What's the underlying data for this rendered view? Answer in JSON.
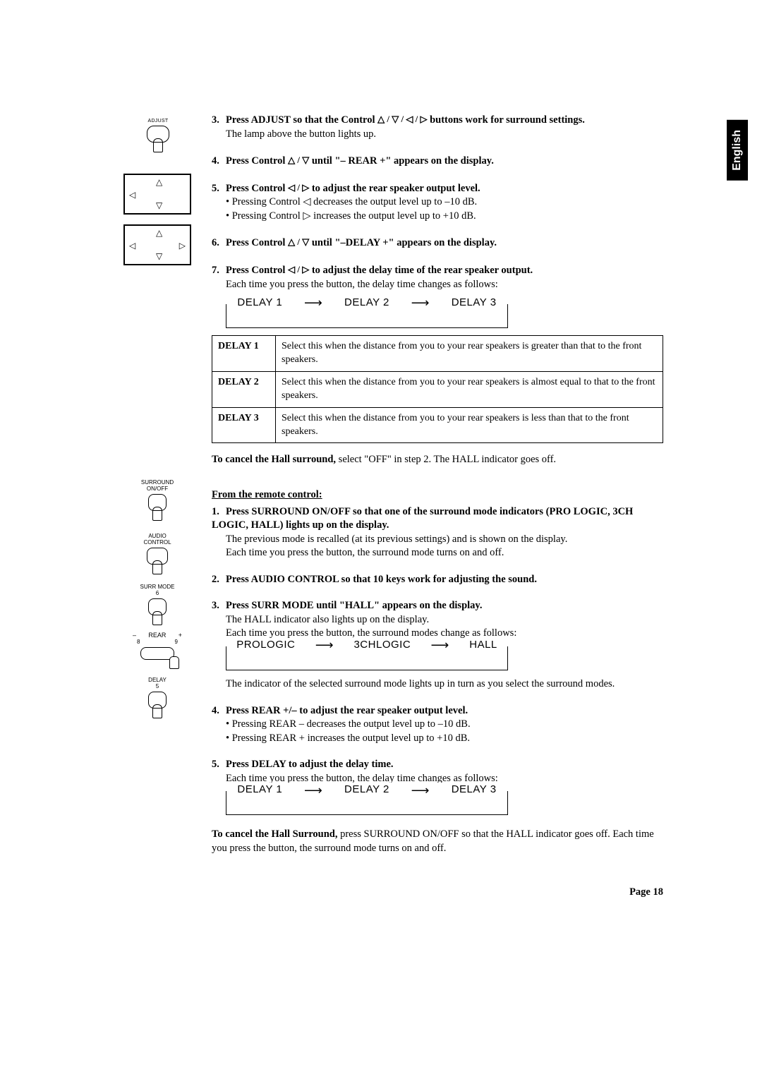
{
  "language_tab": "English",
  "page_label": "Page 18",
  "symbols": {
    "up": "△",
    "down": "▽",
    "left": "◁",
    "right": "▷",
    "arrow": "⟶"
  },
  "steps_a": [
    {
      "n": "3.",
      "bold_pre": "Press ADJUST so that the Control ",
      "bold_sym": "△ / ▽ / ◁ / ▷",
      "bold_post": " buttons work for surround settings.",
      "lines": [
        "The lamp above the button lights up."
      ]
    },
    {
      "n": "4.",
      "bold_pre": "Press Control ",
      "bold_sym": "△ / ▽",
      "bold_post": " until \"– REAR +\" appears on the display.",
      "lines": []
    },
    {
      "n": "5.",
      "bold_pre": "Press Control ",
      "bold_sym": "◁ / ▷",
      "bold_post": " to adjust the rear speaker output level.",
      "lines": [
        "• Pressing Control ◁ decreases the output level up to –10 dB.",
        "• Pressing Control ▷ increases the output level up to +10 dB."
      ]
    },
    {
      "n": "6.",
      "bold_pre": "Press Control ",
      "bold_sym": "△ / ▽",
      "bold_post": " until \"–DELAY +\" appears on the display.",
      "lines": []
    },
    {
      "n": "7.",
      "bold_pre": "Press Control ",
      "bold_sym": "◁ / ▷",
      "bold_post": " to adjust the delay time of the rear speaker output.",
      "lines": [
        "Each time you press the button, the delay time changes as follows:"
      ]
    }
  ],
  "delay_sequence": [
    "DELAY 1",
    "DELAY 2",
    "DELAY 3"
  ],
  "delay_table": [
    {
      "label": "DELAY 1",
      "desc": "Select this when the distance from you to your rear speakers is greater than that to the front speakers."
    },
    {
      "label": "DELAY 2",
      "desc": "Select this when the distance from you to your rear speakers is almost equal to that to the front speakers."
    },
    {
      "label": "DELAY 3",
      "desc": "Select this when the distance from you to your rear speakers is less than that to the front speakers."
    }
  ],
  "cancel_a": {
    "bold": "To cancel the Hall surround,",
    "rest": " select \"OFF\" in step 2. The HALL indicator goes off."
  },
  "remote_heading": "From the remote control:",
  "steps_b": [
    {
      "n": "1.",
      "bold": "Press SURROUND ON/OFF so that one of the surround mode indicators (PRO LOGIC, 3CH LOGIC, HALL) lights up on the display.",
      "lines": [
        "The previous mode is recalled (at its previous settings) and is shown on the display.",
        "Each time you press the button, the surround mode turns on and off."
      ]
    },
    {
      "n": "2.",
      "bold": "Press AUDIO CONTROL so that 10 keys work for adjusting the sound.",
      "lines": []
    },
    {
      "n": "3.",
      "bold": "Press SURR MODE until \"HALL\" appears on the display.",
      "lines": [
        "The HALL indicator also lights up on the display.",
        "Each time you press the button, the surround modes change as follows:"
      ],
      "sequence": [
        "PROLOGIC",
        "3CHLOGIC",
        "HALL"
      ],
      "tail": "The indicator of the selected surround mode lights up in turn as you select the surround modes."
    },
    {
      "n": "4.",
      "bold": "Press REAR +/– to adjust the rear speaker output level.",
      "lines": [
        "• Pressing REAR – decreases the output level up to –10 dB.",
        "• Pressing REAR + increases the output level up to +10 dB."
      ]
    },
    {
      "n": "5.",
      "bold": "Press DELAY to adjust the delay time.",
      "lines": [
        "Each time you press the button, the delay time changes as follows:"
      ],
      "sequence": [
        "DELAY 1",
        "DELAY 2",
        "DELAY 3"
      ]
    }
  ],
  "cancel_b": {
    "bold": "To cancel the Hall Surround,",
    "rest": " press SURROUND ON/OFF so that the HALL indicator goes off. Each time you press the button, the surround mode turns on and off."
  },
  "side_labels": {
    "adjust": "ADJUST",
    "surround": "SURROUND\nON/OFF",
    "audio": "AUDIO\nCONTROL",
    "surr_mode": "SURR MODE",
    "surr_mode_n": "6",
    "rear": "REAR",
    "rear_minus": "–",
    "rear_plus": "+",
    "rear_8": "8",
    "rear_9": "9",
    "delay": "DELAY",
    "delay_n": "5"
  }
}
